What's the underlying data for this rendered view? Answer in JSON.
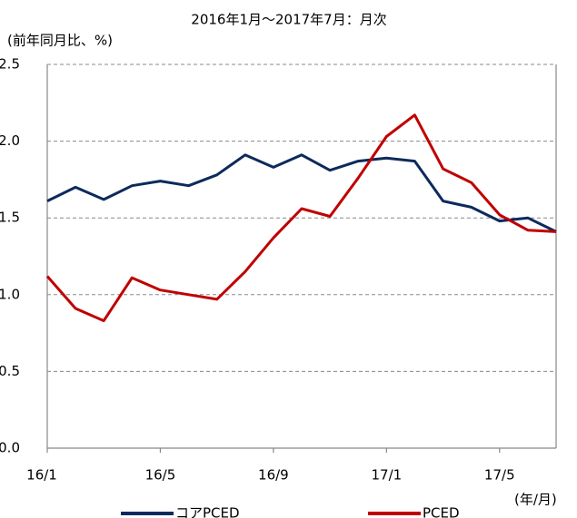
{
  "chart_data": {
    "type": "line",
    "title": "2016年1月～2017年7月：月次",
    "y_label": "(前年同月比、%)",
    "x_label": "(年/月)",
    "categories": [
      "16/1",
      null,
      null,
      null,
      "16/5",
      null,
      null,
      null,
      "16/9",
      null,
      null,
      null,
      "17/1",
      null,
      null,
      null,
      "17/5",
      null,
      null
    ],
    "series": [
      {
        "name": "コアPCED",
        "color": "#0d2a5c",
        "values": [
          1.61,
          1.7,
          1.62,
          1.71,
          1.74,
          1.71,
          1.78,
          1.91,
          1.83,
          1.91,
          1.81,
          1.87,
          1.89,
          1.87,
          1.61,
          1.57,
          1.48,
          1.5,
          1.41
        ]
      },
      {
        "name": "PCED",
        "color": "#c00000",
        "values": [
          1.12,
          0.91,
          0.83,
          1.11,
          1.03,
          1.0,
          0.97,
          1.15,
          1.37,
          1.56,
          1.51,
          1.76,
          2.03,
          2.17,
          1.82,
          1.73,
          1.52,
          1.42,
          1.41
        ]
      }
    ],
    "ylim": [
      0,
      2.5
    ],
    "yticks": [
      {
        "value": 0,
        "label": "0.0"
      },
      {
        "value": 0.5,
        "label": "0.5"
      },
      {
        "value": 1,
        "label": "1.0"
      },
      {
        "value": 1.5,
        "label": "1.5"
      },
      {
        "value": 2,
        "label": "2.0"
      },
      {
        "value": 2.5,
        "label": "2.5"
      }
    ],
    "grid": true,
    "legend": "bottom"
  }
}
